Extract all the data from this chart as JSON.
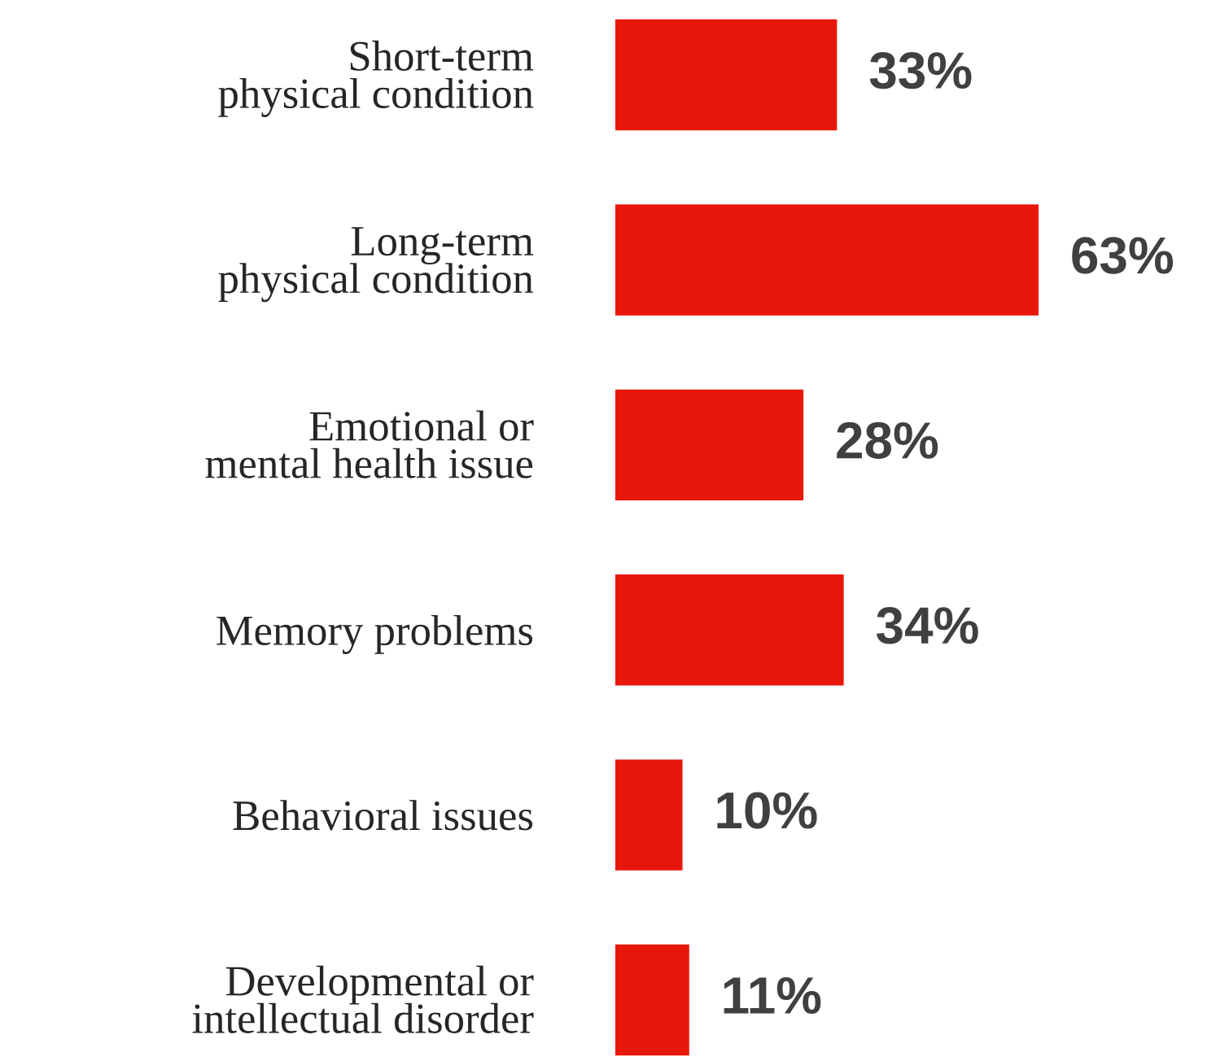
{
  "chart_data": {
    "type": "bar",
    "orientation": "horizontal",
    "categories": [
      "Short-term\nphysical condition",
      "Long-term\nphysical condition",
      "Emotional or\nmental health issue",
      "Memory problems",
      "Behavioral issues",
      "Developmental or\nintellectual disorder"
    ],
    "values": [
      33,
      63,
      28,
      34,
      10,
      11
    ],
    "value_labels": [
      "33%",
      "63%",
      "28%",
      "34%",
      "10%",
      "11%"
    ],
    "color": "#e8170b",
    "grid": false,
    "legend": false
  }
}
